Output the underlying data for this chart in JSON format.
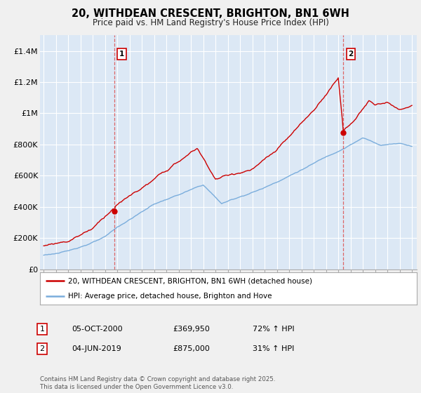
{
  "title": "20, WITHDEAN CRESCENT, BRIGHTON, BN1 6WH",
  "subtitle": "Price paid vs. HM Land Registry's House Price Index (HPI)",
  "ylim": [
    0,
    1500000
  ],
  "yticks": [
    0,
    200000,
    400000,
    600000,
    800000,
    1000000,
    1200000,
    1400000
  ],
  "ytick_labels": [
    "£0",
    "£200K",
    "£400K",
    "£600K",
    "£800K",
    "£1M",
    "£1.2M",
    "£1.4M"
  ],
  "sale1_date": 2000.75,
  "sale1_price": 369950,
  "sale2_date": 2019.42,
  "sale2_price": 875000,
  "red_line_color": "#cc0000",
  "blue_line_color": "#7aaddc",
  "vline_color": "#dd4444",
  "grid_color": "#c8d8e8",
  "chart_bg_color": "#dce8f5",
  "background_color": "#f0f0f0",
  "legend_label_red": "20, WITHDEAN CRESCENT, BRIGHTON, BN1 6WH (detached house)",
  "legend_label_blue": "HPI: Average price, detached house, Brighton and Hove",
  "footer_text": "Contains HM Land Registry data © Crown copyright and database right 2025.\nThis data is licensed under the Open Government Licence v3.0.",
  "table_row1": [
    "1",
    "05-OCT-2000",
    "£369,950",
    "72% ↑ HPI"
  ],
  "table_row2": [
    "2",
    "04-JUN-2019",
    "£875,000",
    "31% ↑ HPI"
  ]
}
